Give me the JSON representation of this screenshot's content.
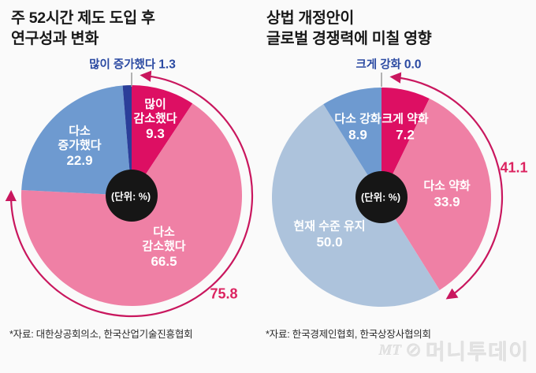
{
  "unit_note": "(단위: %)",
  "colors": {
    "magenta": "#dd0f63",
    "pink": "#ef80a5",
    "blue": "#6e9ad0",
    "navy": "#2b3e99",
    "light_blue": "#adc3dc",
    "arrow": "#c9175e",
    "annotation_text": "#dc2360",
    "callout_text": "#2b4aa2",
    "hole": "#161616",
    "background": "#fafafa"
  },
  "charts": [
    {
      "title": "주 52시간 제도 도입 후\n연구성과 변화",
      "source": "*자료: 대한상공회의소, 한국산업기술진흥협회",
      "callout": {
        "label": "많이 증가했다",
        "value": "1.3"
      },
      "arc_label": "75.8",
      "labels": {
        "decrease_big": {
          "name": "많이\n감소했다",
          "value": "9.3"
        },
        "increase_some": {
          "name": "다소\n증가했다",
          "value": "22.9"
        },
        "decrease_some": {
          "name": "다소\n감소했다",
          "value": "66.5"
        }
      }
    },
    {
      "title": "상법 개정안이\n글로벌 경쟁력에 미칠 영향",
      "source": "*자료: 한국경제인협회, 한국상장사협의회",
      "callout": {
        "label": "크게 강화",
        "value": "0.0"
      },
      "arc_label": "41.1",
      "labels": {
        "strengthen_some": {
          "name": "다소 강화",
          "value": "8.9"
        },
        "weaken_big": {
          "name": "크게 약화",
          "value": "7.2"
        },
        "weaken_some": {
          "name": "다소 약화",
          "value": "33.9"
        },
        "maintain": {
          "name": "현재 수준 유지",
          "value": "50.0"
        }
      }
    }
  ],
  "watermark": {
    "mt": "MT",
    "mark": "⊘",
    "name": "머니투데이"
  },
  "chart_data": [
    {
      "type": "pie",
      "title": "주 52시간 제도 도입 후 연구성과 변화",
      "unit": "%",
      "start_angle_deg": 0,
      "direction": "clockwise",
      "labels": [
        "많이 감소했다",
        "다소 감소했다",
        "다소 증가했다",
        "많이 증가했다"
      ],
      "values": [
        9.3,
        66.5,
        22.9,
        1.3
      ],
      "colors": [
        "#dd0f63",
        "#ef80a5",
        "#6e9ad0",
        "#2b3e99"
      ],
      "center_label": "(단위: %)",
      "arc_annotation": {
        "covers": [
          "많이 감소했다",
          "다소 감소했다"
        ],
        "total": 75.8,
        "label": "75.8"
      }
    },
    {
      "type": "pie",
      "title": "상법 개정안이 글로벌 경쟁력에 미칠 영향",
      "unit": "%",
      "start_angle_deg": 0,
      "direction": "clockwise",
      "labels": [
        "크게 약화",
        "다소 약화",
        "현재 수준 유지",
        "다소 강화",
        "크게 강화"
      ],
      "values": [
        7.2,
        33.9,
        50.0,
        8.9,
        0.0
      ],
      "colors": [
        "#dd0f63",
        "#ef80a5",
        "#adc3dc",
        "#6e9ad0",
        "#2b3e99"
      ],
      "center_label": "(단위: %)",
      "arc_annotation": {
        "covers": [
          "크게 약화",
          "다소 약화"
        ],
        "total": 41.1,
        "label": "41.1"
      }
    }
  ]
}
